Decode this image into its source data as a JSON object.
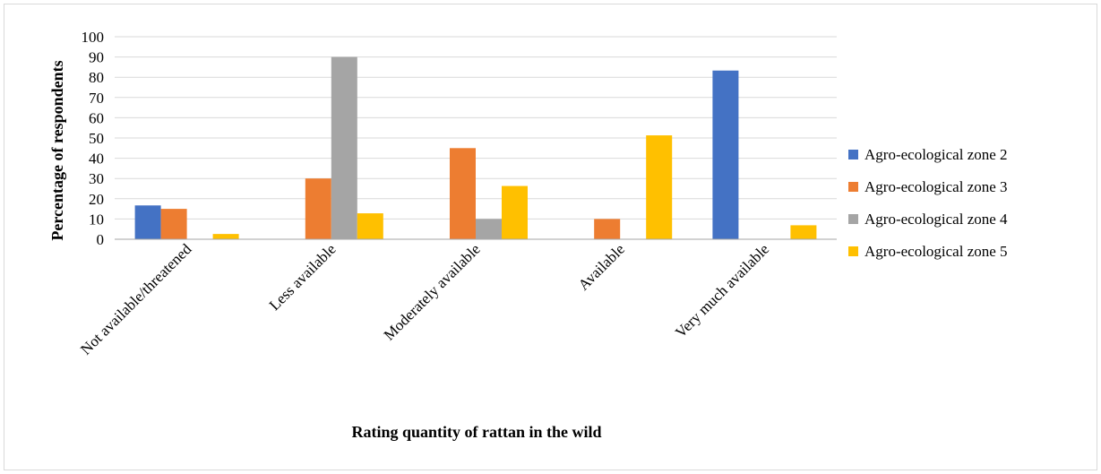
{
  "chart_data": {
    "type": "bar",
    "title": "",
    "xlabel": "Rating quantity of rattan in the wild",
    "ylabel": "Percentage of respondents",
    "categories": [
      "Not available/threatened",
      "Less available",
      "Moderately available",
      "Available",
      "Very much available"
    ],
    "yticks": [
      0,
      10,
      20,
      30,
      40,
      50,
      60,
      70,
      80,
      90,
      100
    ],
    "ylim": [
      0,
      100
    ],
    "grid": true,
    "legend_position": "right",
    "series": [
      {
        "name": "Agro-ecological zone 2",
        "color": "#4472C4",
        "values": [
          16.7,
          0,
          0,
          0,
          83.3
        ]
      },
      {
        "name": "Agro-ecological zone 3",
        "color": "#ED7D31",
        "values": [
          15,
          30,
          45,
          10,
          0
        ]
      },
      {
        "name": "Agro-ecological zone 4",
        "color": "#A5A5A5",
        "values": [
          0,
          90,
          10,
          0,
          0
        ]
      },
      {
        "name": "Agro-ecological zone 5",
        "color": "#FFC000",
        "values": [
          2.6,
          12.8,
          26.3,
          51.3,
          6.9
        ]
      }
    ]
  }
}
